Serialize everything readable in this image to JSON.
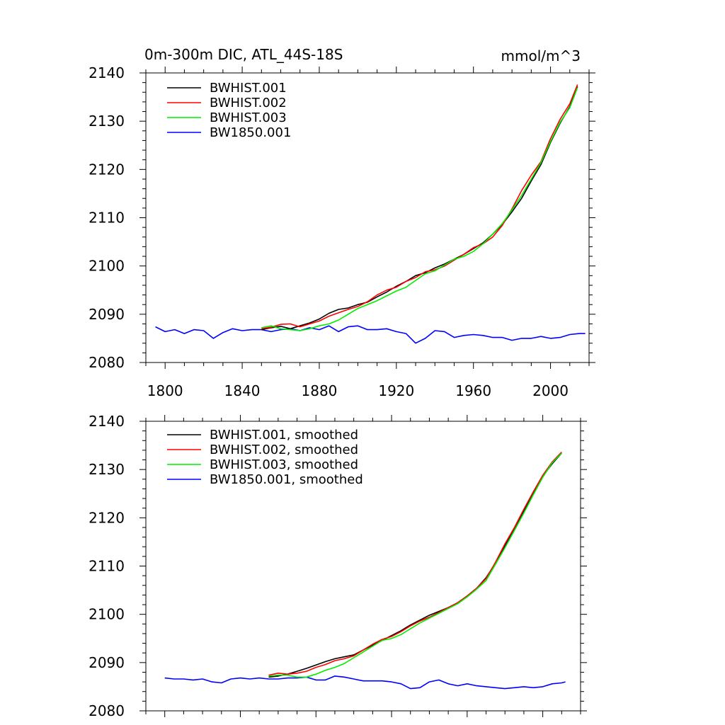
{
  "chart_data": [
    {
      "type": "line",
      "title_left": "0m-300m DIC, ATL_44S-18S",
      "title_right": "mmol/m^3",
      "xlim": [
        1790,
        2020
      ],
      "ylim": [
        2080,
        2140
      ],
      "xticks": [
        1800,
        1840,
        1880,
        1920,
        1960,
        2000
      ],
      "xtick_labels": [
        "1800",
        "1840",
        "1880",
        "1920",
        "1960",
        "2000"
      ],
      "yticks": [
        2080,
        2090,
        2100,
        2110,
        2120,
        2130,
        2140
      ],
      "ytick_labels": [
        "2080",
        "2090",
        "2100",
        "2110",
        "2120",
        "2130",
        "2140"
      ],
      "legend_position": "top-left",
      "series": [
        {
          "name": "BWHIST.001",
          "color": "#000000",
          "x": [
            1850,
            1855,
            1860,
            1865,
            1870,
            1875,
            1880,
            1885,
            1890,
            1895,
            1900,
            1905,
            1910,
            1915,
            1920,
            1925,
            1930,
            1935,
            1940,
            1945,
            1950,
            1955,
            1960,
            1965,
            1970,
            1975,
            1980,
            1985,
            1990,
            1995,
            2000,
            2005,
            2010,
            2014
          ],
          "y": [
            2086.8,
            2087.2,
            2087.5,
            2087.0,
            2087.6,
            2088.2,
            2089.0,
            2090.2,
            2091.0,
            2091.3,
            2092.0,
            2092.5,
            2093.6,
            2094.6,
            2095.8,
            2096.8,
            2098.0,
            2098.6,
            2099.6,
            2100.4,
            2101.4,
            2102.4,
            2103.6,
            2104.8,
            2106.6,
            2108.6,
            2111.2,
            2114.0,
            2117.6,
            2121.0,
            2125.6,
            2129.6,
            2133.0,
            2137.2
          ]
        },
        {
          "name": "BWHIST.002",
          "color": "#ff0000",
          "x": [
            1850,
            1855,
            1860,
            1865,
            1870,
            1875,
            1880,
            1885,
            1890,
            1895,
            1900,
            1905,
            1910,
            1915,
            1920,
            1925,
            1930,
            1935,
            1940,
            1945,
            1950,
            1955,
            1960,
            1965,
            1970,
            1975,
            1980,
            1985,
            1990,
            1995,
            2000,
            2005,
            2010,
            2014
          ],
          "y": [
            2087.0,
            2087.3,
            2087.9,
            2088.0,
            2087.4,
            2088.0,
            2088.6,
            2089.6,
            2090.3,
            2091.0,
            2091.6,
            2092.6,
            2094.0,
            2095.0,
            2095.6,
            2096.8,
            2097.6,
            2098.8,
            2099.2,
            2100.0,
            2101.2,
            2102.4,
            2103.8,
            2104.6,
            2106.0,
            2108.4,
            2111.8,
            2115.6,
            2118.8,
            2121.6,
            2126.4,
            2130.4,
            2133.6,
            2137.6
          ]
        },
        {
          "name": "BWHIST.003",
          "color": "#00ee00",
          "x": [
            1850,
            1855,
            1860,
            1865,
            1870,
            1875,
            1880,
            1885,
            1890,
            1895,
            1900,
            1905,
            1910,
            1915,
            1920,
            1925,
            1930,
            1935,
            1940,
            1945,
            1950,
            1955,
            1960,
            1965,
            1970,
            1975,
            1980,
            1985,
            1990,
            1995,
            2000,
            2005,
            2010,
            2014
          ],
          "y": [
            2087.2,
            2087.6,
            2087.0,
            2086.8,
            2086.6,
            2087.0,
            2087.6,
            2088.0,
            2088.8,
            2090.0,
            2091.2,
            2092.0,
            2092.8,
            2093.8,
            2094.8,
            2095.6,
            2097.0,
            2098.4,
            2099.0,
            2100.2,
            2101.4,
            2102.0,
            2103.0,
            2104.6,
            2106.6,
            2108.8,
            2111.6,
            2114.6,
            2118.0,
            2121.4,
            2125.8,
            2129.8,
            2132.8,
            2137.0
          ]
        },
        {
          "name": "BW1850.001",
          "color": "#0000ff",
          "x": [
            1795,
            1800,
            1805,
            1810,
            1815,
            1820,
            1825,
            1830,
            1835,
            1840,
            1845,
            1850,
            1855,
            1860,
            1865,
            1870,
            1875,
            1880,
            1885,
            1890,
            1895,
            1900,
            1905,
            1910,
            1915,
            1920,
            1925,
            1930,
            1935,
            1940,
            1945,
            1950,
            1955,
            1960,
            1965,
            1970,
            1975,
            1980,
            1985,
            1990,
            1995,
            2000,
            2005,
            2010,
            2015,
            2018
          ],
          "y": [
            2087.4,
            2086.4,
            2086.8,
            2086.0,
            2086.8,
            2086.6,
            2085.0,
            2086.2,
            2087.0,
            2086.6,
            2086.8,
            2086.8,
            2086.4,
            2086.8,
            2087.0,
            2086.6,
            2087.2,
            2086.8,
            2087.6,
            2086.4,
            2087.4,
            2087.6,
            2086.8,
            2086.8,
            2087.0,
            2086.4,
            2086.0,
            2084.0,
            2085.0,
            2086.6,
            2086.4,
            2085.2,
            2085.6,
            2085.8,
            2085.6,
            2085.2,
            2085.2,
            2084.6,
            2085.0,
            2085.0,
            2085.4,
            2085.0,
            2085.2,
            2085.8,
            2086.0,
            2086.0
          ]
        }
      ]
    },
    {
      "type": "line",
      "title_left": "",
      "title_right": "",
      "xlim": [
        1790,
        2020
      ],
      "ylim": [
        2080,
        2140
      ],
      "xticks": [
        1800,
        1840,
        1880,
        1920,
        1960,
        2000
      ],
      "yticks": [
        2080,
        2090,
        2100,
        2110,
        2120,
        2130,
        2140
      ],
      "ytick_labels": [
        "2080",
        "2090",
        "2100",
        "2110",
        "2120",
        "2130",
        "2140"
      ],
      "legend_position": "top-left",
      "series": [
        {
          "name": "BWHIST.001, smoothed",
          "color": "#000000",
          "x": [
            1855,
            1860,
            1865,
            1870,
            1875,
            1880,
            1885,
            1890,
            1895,
            1900,
            1905,
            1910,
            1915,
            1920,
            1925,
            1930,
            1935,
            1940,
            1945,
            1950,
            1955,
            1960,
            1965,
            1970,
            1975,
            1980,
            1985,
            1990,
            1995,
            2000,
            2005,
            2010
          ],
          "y": [
            2087.0,
            2087.2,
            2087.6,
            2088.2,
            2088.8,
            2089.5,
            2090.2,
            2090.8,
            2091.2,
            2091.6,
            2092.6,
            2093.6,
            2094.6,
            2095.6,
            2096.6,
            2097.8,
            2098.8,
            2099.8,
            2100.6,
            2101.4,
            2102.4,
            2103.8,
            2105.4,
            2107.6,
            2110.6,
            2114.2,
            2117.8,
            2121.4,
            2125.0,
            2128.6,
            2131.2,
            2133.4
          ]
        },
        {
          "name": "BWHIST.002, smoothed",
          "color": "#ff0000",
          "x": [
            1855,
            1860,
            1865,
            1870,
            1875,
            1880,
            1885,
            1890,
            1895,
            1900,
            1905,
            1910,
            1915,
            1920,
            1925,
            1930,
            1935,
            1940,
            1945,
            1950,
            1955,
            1960,
            1965,
            1970,
            1975,
            1980,
            1985,
            1990,
            1995,
            2000,
            2005,
            2010
          ],
          "y": [
            2087.4,
            2087.8,
            2087.6,
            2087.8,
            2088.2,
            2089.0,
            2089.6,
            2090.4,
            2090.8,
            2091.4,
            2092.6,
            2093.8,
            2094.8,
            2095.4,
            2096.4,
            2097.6,
            2098.6,
            2099.4,
            2100.4,
            2101.4,
            2102.4,
            2103.8,
            2105.4,
            2107.4,
            2110.8,
            2114.6,
            2118.0,
            2121.8,
            2125.4,
            2128.8,
            2131.6,
            2133.6
          ]
        },
        {
          "name": "BWHIST.003, smoothed",
          "color": "#00ee00",
          "x": [
            1855,
            1860,
            1865,
            1870,
            1875,
            1880,
            1885,
            1890,
            1895,
            1900,
            1905,
            1910,
            1915,
            1920,
            1925,
            1930,
            1935,
            1940,
            1945,
            1950,
            1955,
            1960,
            1965,
            1970,
            1975,
            1980,
            1985,
            1990,
            1995,
            2000,
            2005,
            2010
          ],
          "y": [
            2087.2,
            2087.4,
            2087.4,
            2087.0,
            2087.0,
            2087.6,
            2088.4,
            2089.0,
            2089.8,
            2091.0,
            2092.2,
            2093.4,
            2094.6,
            2095.0,
            2095.8,
            2097.0,
            2098.2,
            2099.2,
            2100.2,
            2101.2,
            2102.2,
            2103.6,
            2105.2,
            2107.0,
            2110.4,
            2113.8,
            2117.4,
            2121.0,
            2124.8,
            2128.4,
            2131.4,
            2133.4
          ]
        },
        {
          "name": "BW1850.001, smoothed",
          "color": "#0000ff",
          "x": [
            1800,
            1805,
            1810,
            1815,
            1820,
            1825,
            1830,
            1835,
            1840,
            1845,
            1850,
            1855,
            1860,
            1865,
            1870,
            1875,
            1880,
            1885,
            1890,
            1895,
            1900,
            1905,
            1910,
            1915,
            1920,
            1925,
            1930,
            1935,
            1940,
            1945,
            1950,
            1955,
            1960,
            1965,
            1970,
            1975,
            1980,
            1985,
            1990,
            1995,
            2000,
            2005,
            2010,
            2012
          ],
          "y": [
            2086.8,
            2086.6,
            2086.6,
            2086.4,
            2086.6,
            2086.0,
            2085.8,
            2086.6,
            2086.8,
            2086.6,
            2086.8,
            2086.6,
            2086.6,
            2086.8,
            2086.8,
            2087.0,
            2086.4,
            2086.4,
            2087.2,
            2087.0,
            2086.6,
            2086.2,
            2086.2,
            2086.2,
            2086.0,
            2085.6,
            2084.6,
            2084.8,
            2086.0,
            2086.4,
            2085.6,
            2085.2,
            2085.6,
            2085.2,
            2085.0,
            2084.8,
            2084.6,
            2084.8,
            2085.0,
            2084.8,
            2085.0,
            2085.6,
            2085.8,
            2086.0
          ]
        }
      ]
    }
  ]
}
